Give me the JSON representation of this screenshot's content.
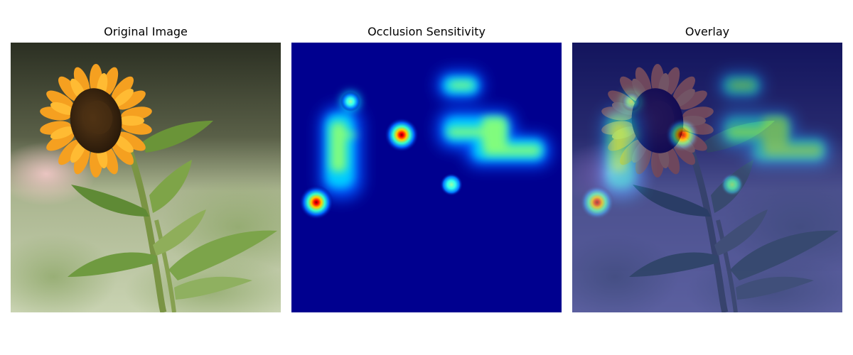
{
  "figure": {
    "panels": [
      {
        "title": "Original Image",
        "icon": "sunflower-photo"
      },
      {
        "title": "Occlusion Sensitivity",
        "icon": "heatmap"
      },
      {
        "title": "Overlay",
        "icon": "heatmap-overlay"
      }
    ]
  },
  "heatmap": {
    "colormap": "jet",
    "background_color": "#00008f",
    "regions": [
      {
        "name": "hotspot-upper-left",
        "kind": "spot"
      },
      {
        "name": "bright-spot-center",
        "kind": "spot"
      },
      {
        "name": "bright-spot-lower-left",
        "kind": "spot"
      },
      {
        "name": "warm-region-left",
        "kind": "region"
      },
      {
        "name": "warm-region-top-right",
        "kind": "region"
      },
      {
        "name": "warm-region-right",
        "kind": "region"
      },
      {
        "name": "cool-spot-right",
        "kind": "spot"
      }
    ]
  },
  "colors": {
    "petal": "#f5a623",
    "seed_head": "#3a2410",
    "stem": "#6f8a3a",
    "leaf": "#5f8a35",
    "background_dark": "#2a2f20",
    "background_light": "#c8d4b0"
  }
}
